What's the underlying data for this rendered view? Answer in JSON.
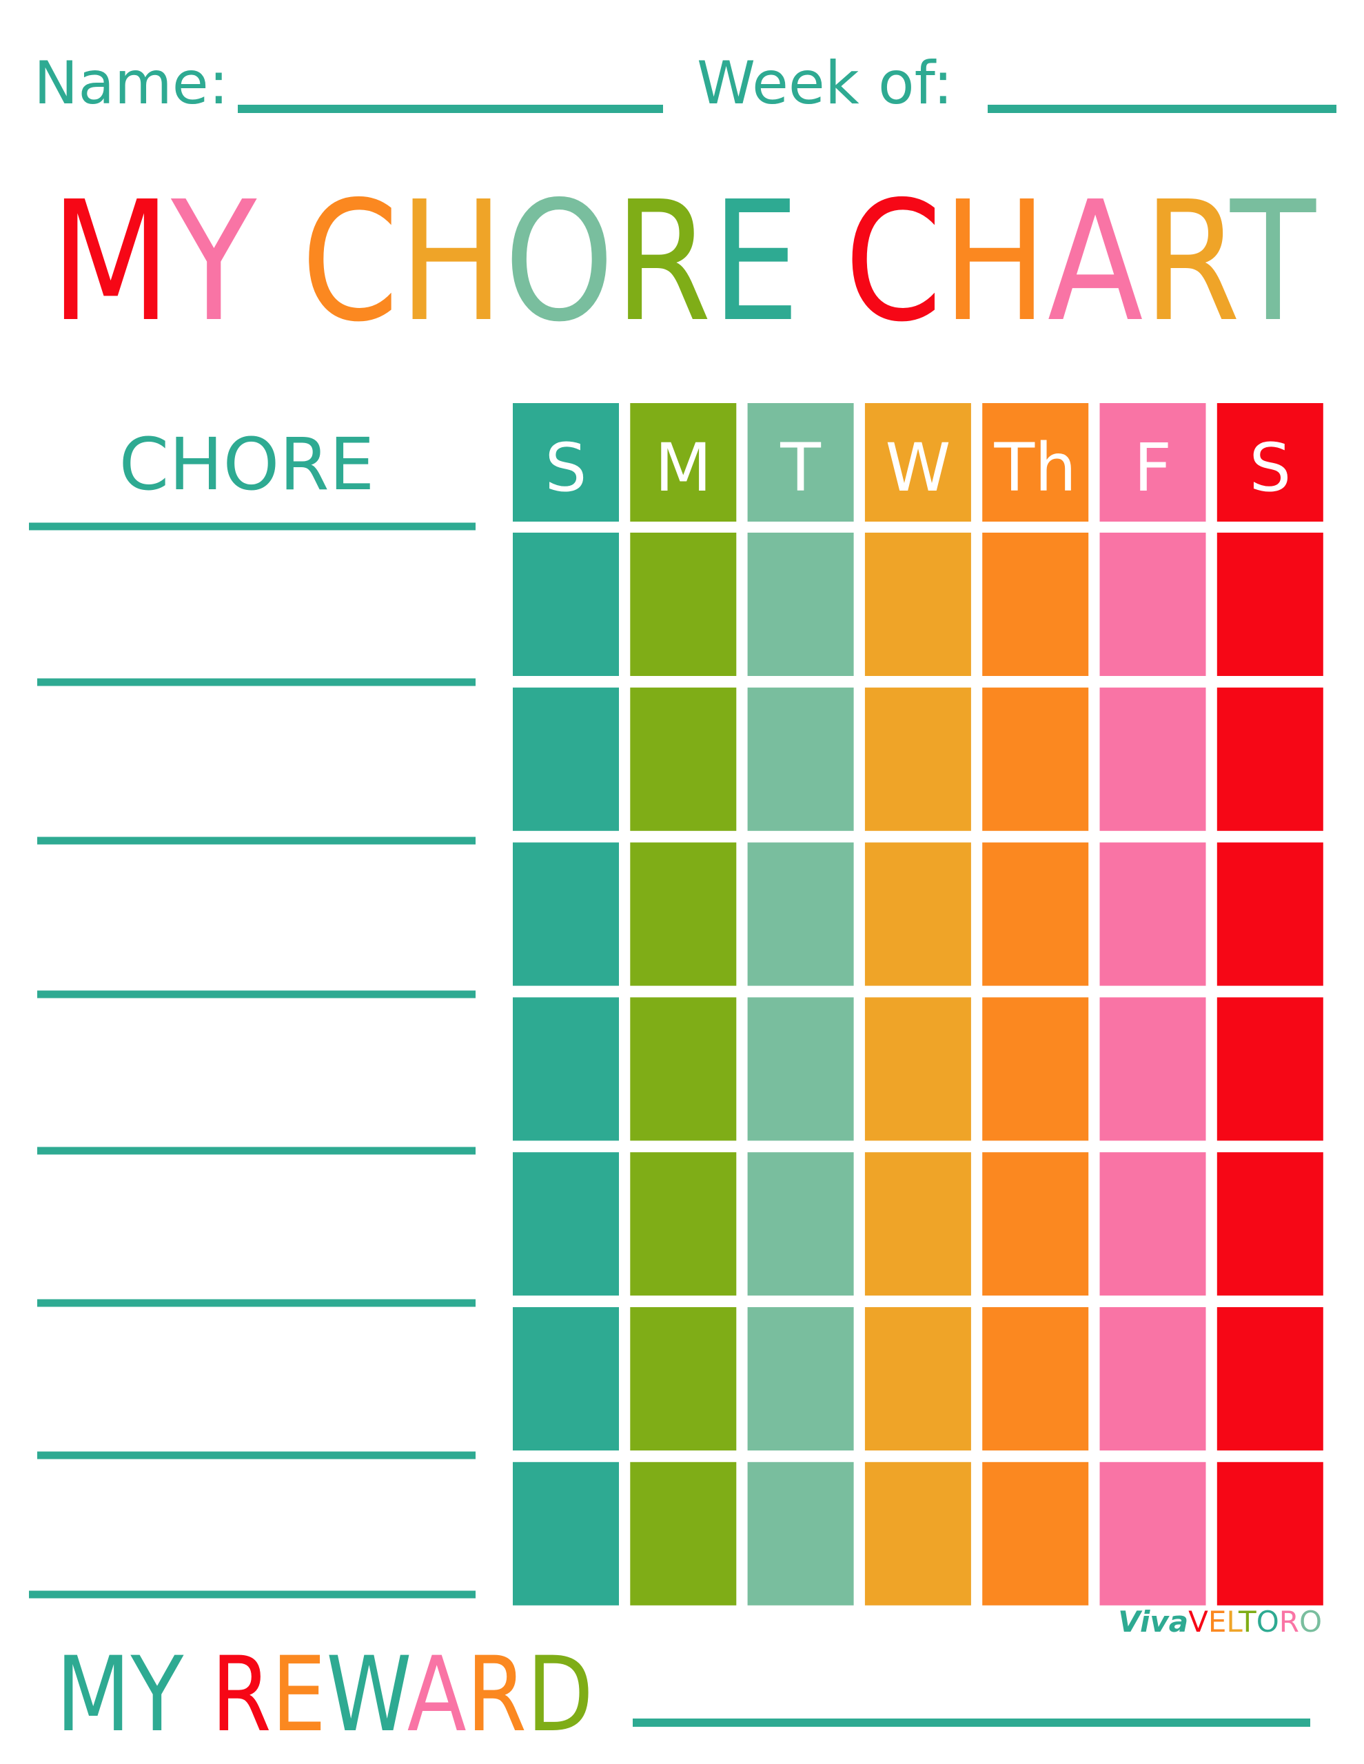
{
  "header": {
    "name_label": "Name:",
    "week_label": "Week of:"
  },
  "title": "MY CHORE CHART",
  "chore_heading": "CHORE",
  "days": [
    "S",
    "M",
    "T",
    "W",
    "Th",
    "F",
    "S"
  ],
  "footer": {
    "reward_label": "MY REWARD",
    "brand": [
      "Viva",
      "VELTORO"
    ]
  }
}
